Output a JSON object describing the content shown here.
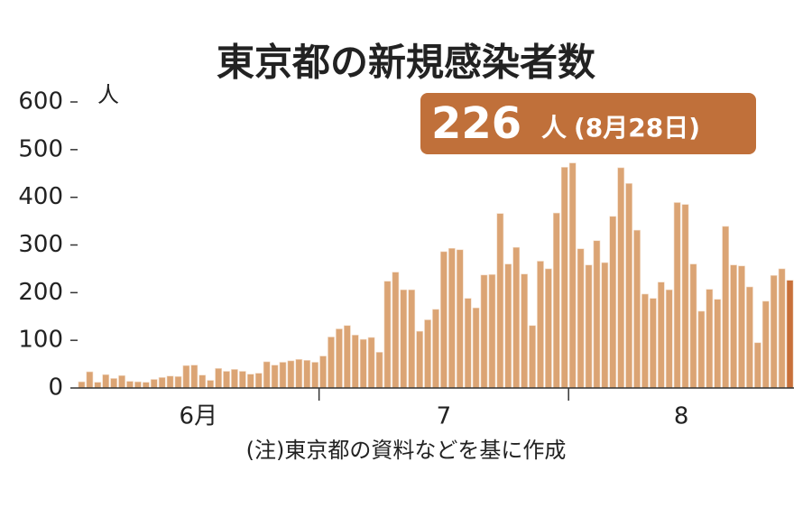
{
  "chart_data": {
    "type": "bar",
    "title": "東京都の新規感染者数",
    "y_unit": "人",
    "annotation": {
      "text": "226",
      "unit": "人",
      "note": "(8月28日)"
    },
    "month_labels": [
      "6月",
      "7",
      "8"
    ],
    "note": "(注)東京都の資料などを基に作成",
    "categories": [
      null,
      null,
      null,
      null,
      null,
      null,
      null,
      null,
      null,
      null,
      null,
      null,
      null,
      null,
      null,
      null,
      null,
      null,
      null,
      null,
      null,
      null,
      null,
      null,
      null,
      null,
      null,
      null,
      null,
      null,
      null,
      null,
      null,
      null,
      null,
      null,
      null,
      null,
      null,
      null,
      null,
      null,
      null,
      null,
      null,
      null,
      null,
      null,
      null,
      null,
      null,
      null,
      null,
      null,
      null,
      null,
      null,
      null,
      null,
      null,
      null,
      null,
      null,
      null,
      null,
      null,
      null,
      null,
      null,
      null,
      null,
      null,
      null,
      null,
      null,
      null,
      null,
      null,
      null,
      null,
      null,
      null,
      null,
      null,
      null,
      null,
      null,
      null,
      null
    ],
    "values": [
      13,
      34,
      12,
      28,
      20,
      26,
      14,
      13,
      12,
      18,
      22,
      25,
      24,
      47,
      48,
      27,
      16,
      41,
      35,
      39,
      35,
      29,
      31,
      55,
      48,
      54,
      57,
      60,
      58,
      54,
      67,
      107,
      124,
      131,
      111,
      102,
      106,
      75,
      224,
      243,
      206,
      206,
      119,
      143,
      165,
      286,
      293,
      290,
      188,
      168,
      237,
      238,
      366,
      260,
      295,
      239,
      131,
      266,
      250,
      367,
      463,
      472,
      292,
      258,
      309,
      263,
      360,
      462,
      429,
      331,
      197,
      188,
      222,
      206,
      389,
      385,
      260,
      161,
      207,
      186,
      339,
      258,
      256,
      212,
      95,
      182,
      236,
      250,
      226
    ],
    "color": "#dba474",
    "highlight_color": "#c8703a",
    "ylim": [
      0,
      600
    ],
    "yticks": [
      0,
      100,
      200,
      300,
      400,
      500,
      600
    ]
  }
}
